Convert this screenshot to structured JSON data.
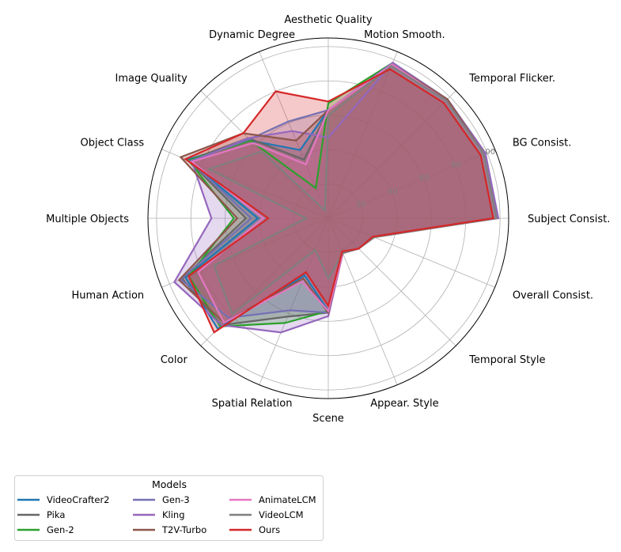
{
  "chart_data": {
    "type": "radar",
    "axes": [
      "Aesthetic Quality",
      "Motion Smooth.",
      "Temporal Flicker.",
      "BG Consist.",
      "Subject Consist.",
      "Overall Consist.",
      "Temporal Style",
      "Appear. Style",
      "Scene",
      "Spatial Relation",
      "Color",
      "Human Action",
      "Multiple Objects",
      "Object Class",
      "Image Quality",
      "Dynamic Degree"
    ],
    "rlim": [
      0,
      105
    ],
    "rticks": [
      20,
      40,
      60,
      80,
      100
    ],
    "tick_labels": [
      "20",
      "40",
      "60",
      "80",
      "100"
    ],
    "grid": true,
    "legend": {
      "title": "Models",
      "placement": "bottom-left",
      "columns": 3
    },
    "series": [
      {
        "name": "VideoCrafter2",
        "color": "#1f77b4",
        "values": [
          63,
          97,
          98,
          98,
          98,
          28,
          25,
          22,
          54,
          36,
          91,
          90,
          41,
          89,
          64,
          43
        ]
      },
      {
        "name": "Pika",
        "color": "#666666",
        "values": [
          63,
          98,
          98,
          99,
          98,
          28,
          25,
          22,
          55,
          62,
          88,
          92,
          48,
          88,
          66,
          37
        ]
      },
      {
        "name": "Gen-2",
        "color": "#2ca02c",
        "values": [
          67,
          98,
          98,
          98,
          98,
          28,
          25,
          22,
          54,
          66,
          89,
          88,
          55,
          88,
          64,
          19
        ]
      },
      {
        "name": "Gen-3",
        "color": "#7570b3",
        "values": [
          63,
          98,
          98,
          99,
          98,
          28,
          25,
          22,
          55,
          58,
          82,
          93,
          45,
          87,
          65,
          61
        ]
      },
      {
        "name": "Kling",
        "color": "#9467bd",
        "values": [
          47,
          98,
          98,
          99,
          99,
          28,
          25,
          22,
          57,
          72,
          88,
          97,
          68,
          86,
          66,
          55
        ]
      },
      {
        "name": "T2V-Turbo",
        "color": "#8c564b",
        "values": [
          63,
          97,
          98,
          98,
          98,
          28,
          25,
          22,
          55,
          38,
          86,
          94,
          53,
          93,
          70,
          49
        ]
      },
      {
        "name": "AnimateLCM",
        "color": "#e377c2",
        "values": [
          63,
          97,
          97,
          98,
          98,
          28,
          25,
          22,
          54,
          40,
          86,
          82,
          38,
          86,
          62,
          34
        ]
      },
      {
        "name": "VideoLCM",
        "color": "#7f7f7f",
        "values": [
          60,
          96,
          97,
          98,
          98,
          29,
          25,
          22,
          35,
          20,
          79,
          72,
          13,
          75,
          55,
          5
        ]
      },
      {
        "name": "Ours",
        "color": "#d62728",
        "values": [
          68,
          94,
          95,
          96,
          96,
          28,
          25,
          21,
          51,
          34,
          94,
          88,
          35,
          90,
          70,
          80
        ]
      }
    ]
  }
}
